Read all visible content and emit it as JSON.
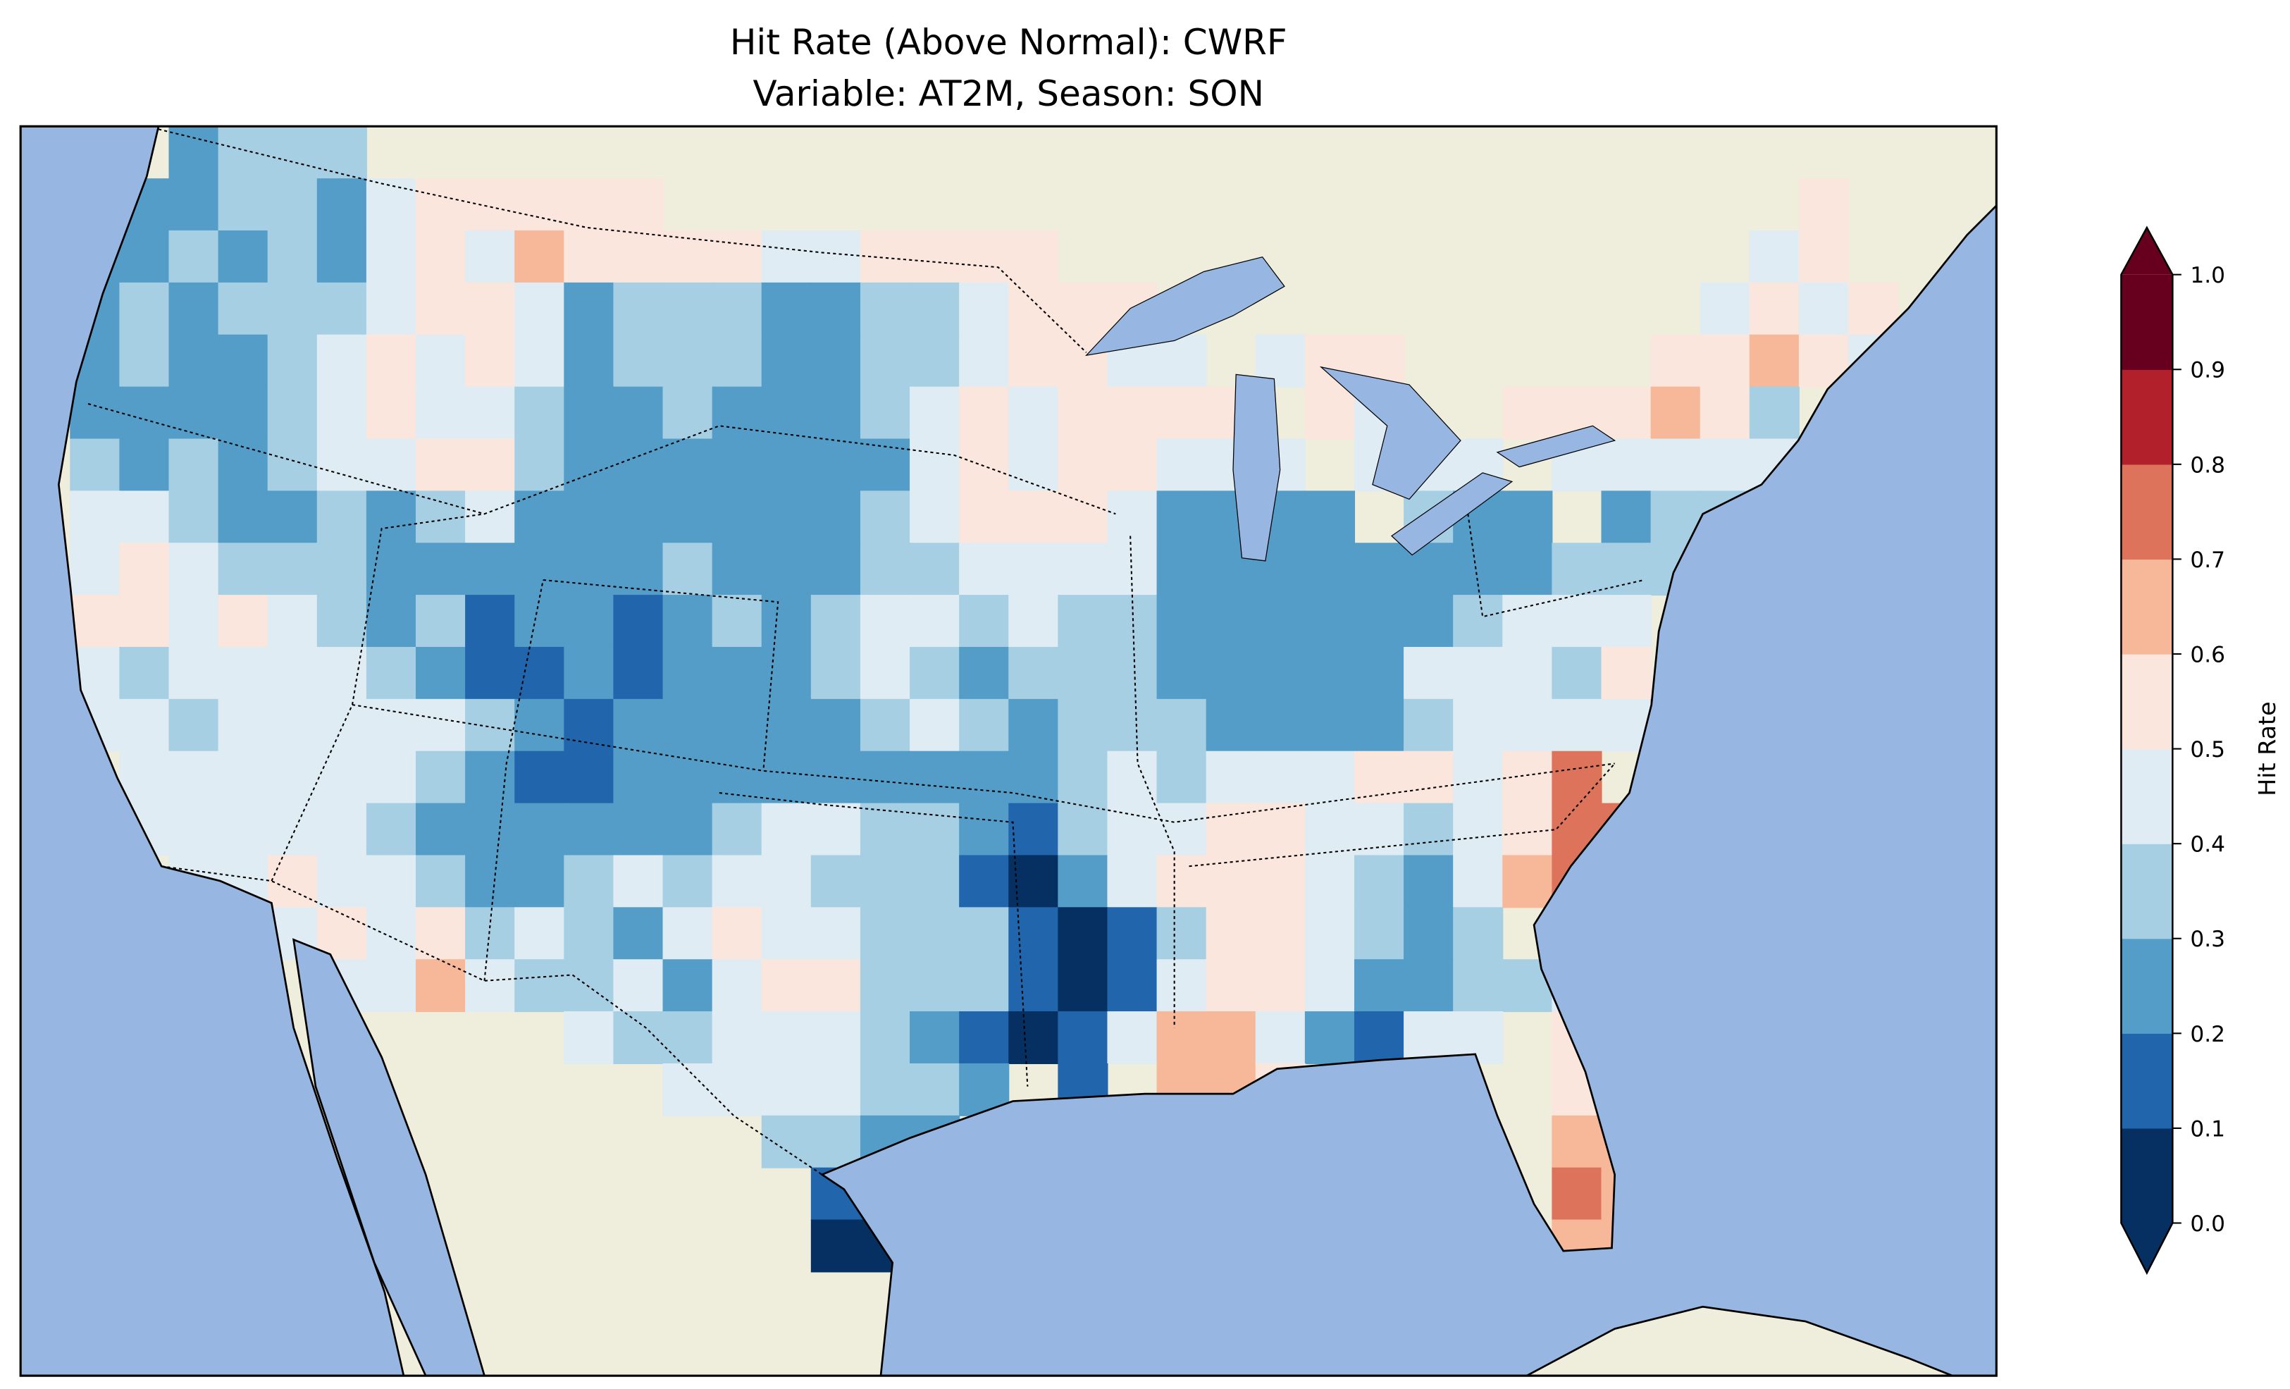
{
  "title_line1": "Hit Rate (Above Normal): CWRF",
  "title_line2": "Variable: AT2M, Season: SON",
  "colors": {
    "ocean": "#97b6e1",
    "land": "#efeddc",
    "bins": [
      "#053061",
      "#2166ac",
      "#539dc8",
      "#a7cfe4",
      "#e0ecf3",
      "#fae6dc",
      "#f6b898",
      "#de735c",
      "#b2202b",
      "#67001f"
    ]
  },
  "chart_data": {
    "type": "heatmap",
    "title": "Hit Rate (Above Normal): CWRF\nVariable: AT2M, Season: SON",
    "colorbar": {
      "label": "Hit Rate",
      "ticks": [
        "0.0",
        "0.1",
        "0.2",
        "0.3",
        "0.4",
        "0.5",
        "0.6",
        "0.7",
        "0.8",
        "0.9",
        "1.0"
      ],
      "range": [
        0,
        1
      ],
      "extend": "both"
    },
    "grid_note": "approximate binned hit-rate field over CONUS; digit = bin index (0 = 0.0-0.1 ... 9 = 0.9-1.0), '.' = no data",
    "grid": [
      "...2333.................................",
      "..22332455555.......................5...",
      ".22323245465555445555..............45...",
      ".2323334554233322334555...........4545..",
      ".23223454542333223345544.455.....55654..",
      ".222234544322322234545555.54..555653....",
      ".3232344553222222245455444.444.444444...",
      ".44322323422222223455542222.322.2334....",
      ".4543332222223222334444222222223334.....",
      ".55454323122123234434332222223444.......",
      ".43444432112122234323332222244435.......",
      ".443444443212222234323332222344447......",
      "..444444321122222222234344455457 7......",
      "..4444432222223443321344554434577.......",
      "...44544322343443331024555432467........",
      "....44545343245443331013554323 45.......",
      "......446433424553331014554223344.......",
      "...........4334443210146642144 55.......",
      ".............4444332 1.665.....555......",
      "...............3322............665......",
      "................11.............76.......",
      "................00.............66......."
    ]
  }
}
